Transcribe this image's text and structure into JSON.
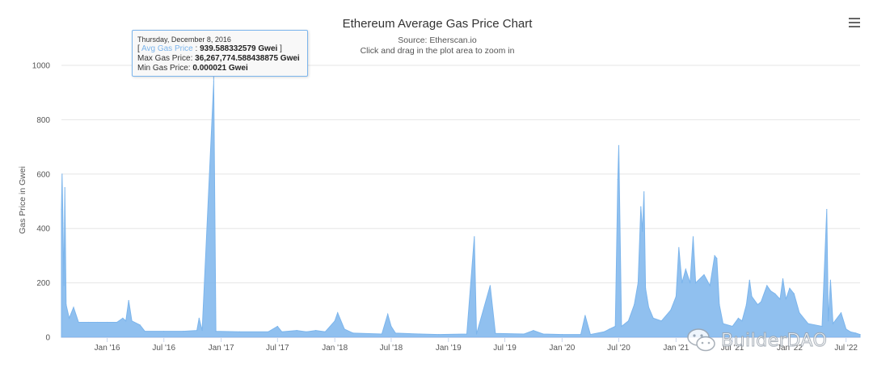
{
  "chart_data": {
    "type": "area",
    "title": "Ethereum Average Gas Price Chart",
    "subtitle_lines": [
      "Source: Etherscan.io",
      "Click and drag in the plot area to zoom in"
    ],
    "ylabel": "Gas Price in Gwei",
    "xlabel": "",
    "ylim": [
      0,
      1000
    ],
    "yticks": [
      0,
      200,
      400,
      600,
      800,
      1000
    ],
    "xlim": [
      "2015-08-07",
      "2022-08-15"
    ],
    "xticks": [
      {
        "date": "2016-01-01",
        "label": "Jan '16"
      },
      {
        "date": "2016-07-01",
        "label": "Jul '16"
      },
      {
        "date": "2017-01-01",
        "label": "Jan '17"
      },
      {
        "date": "2017-07-01",
        "label": "Jul '17"
      },
      {
        "date": "2018-01-01",
        "label": "Jan '18"
      },
      {
        "date": "2018-07-01",
        "label": "Jul '18"
      },
      {
        "date": "2019-01-01",
        "label": "Jan '19"
      },
      {
        "date": "2019-07-01",
        "label": "Jul '19"
      },
      {
        "date": "2020-01-01",
        "label": "Jan '20"
      },
      {
        "date": "2020-07-01",
        "label": "Jul '20"
      },
      {
        "date": "2021-01-01",
        "label": "Jan '21"
      },
      {
        "date": "2021-07-01",
        "label": "Jul '21"
      },
      {
        "date": "2022-01-01",
        "label": "Jan '22"
      },
      {
        "date": "2022-07-01",
        "label": "Jul '22"
      }
    ],
    "grid": true,
    "legend": "none",
    "series_color": "#7cb5ec",
    "series": [
      {
        "points": [
          [
            "2015-08-07",
            470
          ],
          [
            "2015-08-09",
            600
          ],
          [
            "2015-08-12",
            420
          ],
          [
            "2015-08-15",
            190
          ],
          [
            "2015-08-18",
            550
          ],
          [
            "2015-08-22",
            120
          ],
          [
            "2015-09-01",
            70
          ],
          [
            "2015-09-15",
            110
          ],
          [
            "2015-10-01",
            55
          ],
          [
            "2015-11-01",
            55
          ],
          [
            "2015-12-01",
            55
          ],
          [
            "2016-01-01",
            55
          ],
          [
            "2016-02-01",
            55
          ],
          [
            "2016-02-20",
            70
          ],
          [
            "2016-03-01",
            60
          ],
          [
            "2016-03-10",
            135
          ],
          [
            "2016-03-20",
            60
          ],
          [
            "2016-04-15",
            45
          ],
          [
            "2016-05-01",
            22
          ],
          [
            "2016-07-01",
            22
          ],
          [
            "2016-09-01",
            22
          ],
          [
            "2016-10-15",
            25
          ],
          [
            "2016-10-22",
            70
          ],
          [
            "2016-11-01",
            25
          ],
          [
            "2016-12-08",
            939.588332579
          ],
          [
            "2016-12-15",
            22
          ],
          [
            "2017-03-01",
            20
          ],
          [
            "2017-06-01",
            20
          ],
          [
            "2017-07-01",
            40
          ],
          [
            "2017-07-15",
            20
          ],
          [
            "2017-09-01",
            25
          ],
          [
            "2017-10-01",
            20
          ],
          [
            "2017-11-01",
            25
          ],
          [
            "2017-12-01",
            20
          ],
          [
            "2018-01-01",
            60
          ],
          [
            "2018-01-10",
            90
          ],
          [
            "2018-02-01",
            30
          ],
          [
            "2018-03-01",
            15
          ],
          [
            "2018-06-01",
            12
          ],
          [
            "2018-06-20",
            85
          ],
          [
            "2018-07-01",
            40
          ],
          [
            "2018-07-15",
            15
          ],
          [
            "2018-10-01",
            12
          ],
          [
            "2018-12-01",
            10
          ],
          [
            "2019-03-01",
            12
          ],
          [
            "2019-03-25",
            370
          ],
          [
            "2019-04-01",
            12
          ],
          [
            "2019-05-15",
            190
          ],
          [
            "2019-06-01",
            14
          ],
          [
            "2019-09-01",
            12
          ],
          [
            "2019-10-01",
            25
          ],
          [
            "2019-11-01",
            12
          ],
          [
            "2020-01-01",
            10
          ],
          [
            "2020-03-01",
            10
          ],
          [
            "2020-03-15",
            80
          ],
          [
            "2020-04-01",
            10
          ],
          [
            "2020-05-15",
            20
          ],
          [
            "2020-06-01",
            30
          ],
          [
            "2020-06-20",
            40
          ],
          [
            "2020-06-28",
            580
          ],
          [
            "2020-07-01",
            705
          ],
          [
            "2020-07-10",
            40
          ],
          [
            "2020-08-01",
            60
          ],
          [
            "2020-08-20",
            120
          ],
          [
            "2020-09-01",
            200
          ],
          [
            "2020-09-10",
            480
          ],
          [
            "2020-09-15",
            390
          ],
          [
            "2020-09-20",
            535
          ],
          [
            "2020-09-25",
            180
          ],
          [
            "2020-10-05",
            110
          ],
          [
            "2020-10-20",
            70
          ],
          [
            "2020-11-15",
            60
          ],
          [
            "2020-12-15",
            100
          ],
          [
            "2021-01-01",
            150
          ],
          [
            "2021-01-10",
            330
          ],
          [
            "2021-01-20",
            200
          ],
          [
            "2021-02-01",
            250
          ],
          [
            "2021-02-15",
            200
          ],
          [
            "2021-02-25",
            370
          ],
          [
            "2021-03-05",
            200
          ],
          [
            "2021-04-01",
            230
          ],
          [
            "2021-04-20",
            190
          ],
          [
            "2021-05-05",
            300
          ],
          [
            "2021-05-12",
            290
          ],
          [
            "2021-05-20",
            120
          ],
          [
            "2021-06-01",
            50
          ],
          [
            "2021-07-01",
            40
          ],
          [
            "2021-07-20",
            70
          ],
          [
            "2021-08-01",
            60
          ],
          [
            "2021-08-15",
            120
          ],
          [
            "2021-08-25",
            210
          ],
          [
            "2021-09-01",
            150
          ],
          [
            "2021-09-20",
            120
          ],
          [
            "2021-10-01",
            130
          ],
          [
            "2021-10-20",
            190
          ],
          [
            "2021-11-01",
            170
          ],
          [
            "2021-11-15",
            160
          ],
          [
            "2021-12-01",
            140
          ],
          [
            "2021-12-10",
            215
          ],
          [
            "2021-12-20",
            140
          ],
          [
            "2022-01-01",
            180
          ],
          [
            "2022-01-15",
            160
          ],
          [
            "2022-02-01",
            90
          ],
          [
            "2022-03-01",
            50
          ],
          [
            "2022-04-15",
            40
          ],
          [
            "2022-04-30",
            470
          ],
          [
            "2022-05-05",
            60
          ],
          [
            "2022-05-12",
            210
          ],
          [
            "2022-05-20",
            50
          ],
          [
            "2022-06-15",
            90
          ],
          [
            "2022-07-01",
            30
          ],
          [
            "2022-07-15",
            20
          ],
          [
            "2022-08-01",
            15
          ],
          [
            "2022-08-15",
            10
          ]
        ]
      }
    ]
  },
  "tooltip": {
    "date": "Thursday, December 8, 2016",
    "series_name": "Avg Gas Price",
    "avg_value": "939.588332579 Gwei",
    "max_label": "Max Gas Price:",
    "max_value": "36,267,774.588438875 Gwei",
    "min_label": "Min Gas Price:",
    "min_value": "0.000021 Gwei"
  },
  "menu_icon": "hamburger-menu-icon",
  "watermark": {
    "text": "BuilderDAO",
    "icon": "wechat-icon"
  }
}
